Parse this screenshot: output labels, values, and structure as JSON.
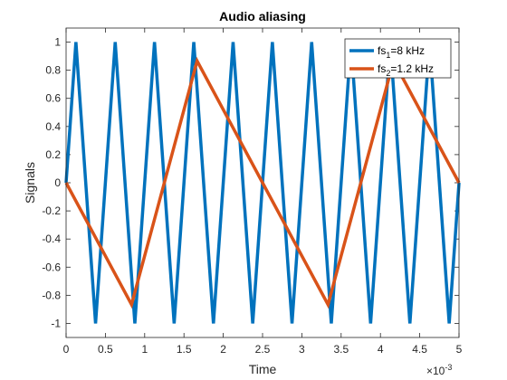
{
  "chart_data": {
    "type": "line",
    "title": "Audio aliasing",
    "xlabel": "Time",
    "ylabel": "Signals",
    "x_exponent": {
      "base": "×10",
      "exp": "-3"
    },
    "xlim": [
      0,
      5
    ],
    "ylim": [
      -1.1,
      1.1
    ],
    "xticks": [
      0,
      0.5,
      1,
      1.5,
      2,
      2.5,
      3,
      3.5,
      4,
      4.5,
      5
    ],
    "xtick_labels": [
      "0",
      "0.5",
      "1",
      "1.5",
      "2",
      "2.5",
      "3",
      "3.5",
      "4",
      "4.5",
      "5"
    ],
    "yticks": [
      -1,
      -0.8,
      -0.6,
      -0.4,
      -0.2,
      0,
      0.2,
      0.4,
      0.6,
      0.8,
      1
    ],
    "ytick_labels": [
      "-1",
      "-0.8",
      "-0.6",
      "-0.4",
      "-0.2",
      "0",
      "0.2",
      "0.4",
      "0.6",
      "0.8",
      "1"
    ],
    "legend_position": "top-right",
    "series": [
      {
        "name_main": "fs",
        "name_sub": "1",
        "name_rest": "=8 kHz",
        "color": "#0072BD",
        "x": [
          0,
          0.125,
          0.375,
          0.625,
          0.875,
          1.125,
          1.375,
          1.625,
          1.875,
          2.125,
          2.375,
          2.625,
          2.875,
          3.125,
          3.375,
          3.625,
          3.875,
          4.125,
          4.375,
          4.625,
          4.875,
          5
        ],
        "y": [
          0,
          1,
          -1,
          1,
          -1,
          1,
          -1,
          1,
          -1,
          1,
          -1,
          1,
          -1,
          1,
          -1,
          1,
          -1,
          1,
          -1,
          1,
          -1,
          0
        ]
      },
      {
        "name_main": "fs",
        "name_sub": "2",
        "name_rest": "=1.2 kHz",
        "color": "#D95319",
        "x": [
          0,
          0.833,
          1.667,
          2.5,
          3.333,
          4.167,
          5
        ],
        "y": [
          0,
          -0.866,
          0.866,
          0,
          -0.866,
          0.866,
          0
        ]
      }
    ]
  }
}
